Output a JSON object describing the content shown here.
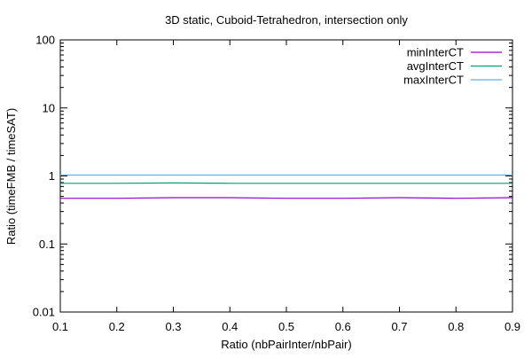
{
  "chart_data": {
    "type": "line",
    "title": "3D static, Cuboid-Tetrahedron, intersection only",
    "xlabel": "Ratio (nbPairInter/nbPair)",
    "ylabel": "Ratio (timeFMB / timeSAT)",
    "xlim": [
      0.1,
      0.9
    ],
    "ylim": [
      0.01,
      100
    ],
    "yscale": "log",
    "x_ticks": [
      "0.1",
      "0.2",
      "0.3",
      "0.4",
      "0.5",
      "0.6",
      "0.7",
      "0.8",
      "0.9"
    ],
    "y_ticks": [
      "0.01",
      "0.1",
      "1",
      "10",
      "100"
    ],
    "legend_position": "top-right",
    "grid": false,
    "series": [
      {
        "name": "minInterCT",
        "color": "#9400d3",
        "x": [
          0.1,
          0.2,
          0.3,
          0.4,
          0.5,
          0.6,
          0.7,
          0.8,
          0.9
        ],
        "y": [
          0.47,
          0.47,
          0.48,
          0.48,
          0.47,
          0.47,
          0.48,
          0.47,
          0.48
        ]
      },
      {
        "name": "avgInterCT",
        "color": "#009e73",
        "x": [
          0.1,
          0.2,
          0.3,
          0.4,
          0.5,
          0.6,
          0.7,
          0.8,
          0.9
        ],
        "y": [
          0.78,
          0.78,
          0.79,
          0.78,
          0.78,
          0.78,
          0.78,
          0.78,
          0.78
        ]
      },
      {
        "name": "maxInterCT",
        "color": "#56b4e9",
        "x": [
          0.1,
          0.2,
          0.3,
          0.4,
          0.5,
          0.6,
          0.7,
          0.8,
          0.9
        ],
        "y": [
          1.03,
          1.03,
          1.03,
          1.03,
          1.03,
          1.03,
          1.03,
          1.03,
          1.03
        ]
      }
    ]
  }
}
